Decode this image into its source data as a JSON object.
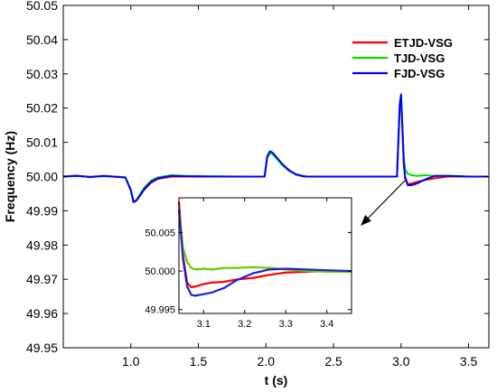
{
  "chart_data": [
    {
      "type": "line",
      "xlabel": "t (s)",
      "ylabel": "Frequency (Hz)",
      "xlim": [
        0.5,
        3.65
      ],
      "ylim": [
        49.95,
        50.05
      ],
      "xticks": [
        1.0,
        1.5,
        2.0,
        2.5,
        3.0,
        3.5
      ],
      "xtick_labels": [
        "1.0",
        "1.5",
        "2.0",
        "2.5",
        "3.0",
        "3.5"
      ],
      "yticks": [
        49.95,
        49.96,
        49.97,
        49.98,
        49.99,
        50.0,
        50.01,
        50.02,
        50.03,
        50.04,
        50.05
      ],
      "ytick_labels": [
        "49.95",
        "49.96",
        "49.97",
        "49.98",
        "49.99",
        "50.00",
        "50.01",
        "50.02",
        "50.03",
        "50.04",
        "50.05"
      ],
      "grid": false,
      "legend_position": "top-right",
      "series": [
        {
          "name": "ETJD-VSG",
          "color": "#ff0000",
          "x": [
            0.5,
            0.6,
            0.7,
            0.8,
            0.9,
            0.96,
            1.0,
            1.02,
            1.04,
            1.07,
            1.1,
            1.15,
            1.2,
            1.3,
            1.4,
            1.6,
            1.8,
            1.99,
            2.01,
            2.03,
            2.05,
            2.08,
            2.12,
            2.17,
            2.22,
            2.27,
            2.3,
            2.4,
            2.6,
            2.8,
            2.97,
            2.99,
            3.0,
            3.01,
            3.02,
            3.03,
            3.05,
            3.08,
            3.12,
            3.18,
            3.25,
            3.35,
            3.5,
            3.65
          ],
          "y": [
            50.0,
            50.0003,
            49.9998,
            50.0002,
            49.9999,
            49.9998,
            49.996,
            49.9925,
            49.9929,
            49.9945,
            49.9962,
            49.9982,
            49.9993,
            50.0,
            50.0,
            50.0,
            50.0,
            50.0,
            50.0058,
            50.0072,
            50.0068,
            50.0055,
            50.0036,
            50.0018,
            50.0006,
            50.0001,
            50.0,
            50.0,
            50.0,
            50.0,
            50.0,
            50.02,
            50.0235,
            50.014,
            50.004,
            50.0,
            49.9978,
            49.998,
            49.9985,
            49.999,
            49.9995,
            50.0,
            50.0,
            50.0
          ]
        },
        {
          "name": "TJD-VSG",
          "color": "#00e000",
          "x": [
            0.5,
            0.6,
            0.7,
            0.8,
            0.9,
            0.96,
            1.0,
            1.02,
            1.04,
            1.07,
            1.1,
            1.15,
            1.2,
            1.3,
            1.4,
            1.6,
            1.8,
            1.99,
            2.01,
            2.03,
            2.05,
            2.08,
            2.12,
            2.17,
            2.22,
            2.27,
            2.3,
            2.4,
            2.6,
            2.8,
            2.97,
            2.99,
            3.0,
            3.01,
            3.02,
            3.03,
            3.05,
            3.08,
            3.12,
            3.18,
            3.25,
            3.35,
            3.5,
            3.65
          ],
          "y": [
            50.0,
            50.0002,
            49.9999,
            50.0001,
            50.0,
            49.9998,
            49.9962,
            49.9928,
            49.993,
            49.995,
            49.9968,
            49.9988,
            49.9998,
            50.0004,
            50.0002,
            50.0001,
            50.0,
            50.0,
            50.0055,
            50.0068,
            50.0065,
            50.0052,
            50.0034,
            50.0017,
            50.0006,
            50.0001,
            50.0,
            50.0,
            50.0,
            50.0,
            50.0,
            50.0195,
            50.0235,
            50.015,
            50.006,
            50.0022,
            50.0008,
            50.0004,
            50.0002,
            50.0004,
            50.0002,
            50.0002,
            50.0,
            50.0
          ]
        },
        {
          "name": "FJD-VSG",
          "color": "#0000ff",
          "x": [
            0.5,
            0.6,
            0.7,
            0.8,
            0.9,
            0.96,
            1.0,
            1.02,
            1.04,
            1.07,
            1.1,
            1.15,
            1.2,
            1.3,
            1.4,
            1.6,
            1.8,
            1.99,
            2.01,
            2.03,
            2.05,
            2.08,
            2.12,
            2.17,
            2.22,
            2.27,
            2.3,
            2.4,
            2.6,
            2.8,
            2.97,
            2.99,
            3.0,
            3.01,
            3.02,
            3.03,
            3.05,
            3.08,
            3.12,
            3.18,
            3.25,
            3.35,
            3.5,
            3.65
          ],
          "y": [
            50.0,
            50.0002,
            49.9999,
            50.0002,
            49.9999,
            49.9997,
            49.996,
            49.9926,
            49.993,
            49.9946,
            49.9964,
            49.9985,
            49.9995,
            50.0002,
            50.0001,
            50.0,
            50.0,
            50.0,
            50.006,
            50.0074,
            50.007,
            50.0056,
            50.0037,
            50.0019,
            50.0007,
            50.0002,
            50.0,
            50.0,
            50.0,
            50.0,
            50.0,
            50.021,
            50.024,
            50.0145,
            50.004,
            49.9995,
            49.9975,
            49.9975,
            49.998,
            49.9992,
            50.0002,
            50.0002,
            50.0,
            50.0
          ]
        }
      ]
    },
    {
      "type": "line",
      "xlim": [
        3.04,
        3.46
      ],
      "ylim": [
        49.9945,
        50.0095
      ],
      "xticks": [
        3.1,
        3.2,
        3.3,
        3.4
      ],
      "xtick_labels": [
        "3.1",
        "3.2",
        "3.3",
        "3.4"
      ],
      "yticks": [
        49.995,
        50.0,
        50.005
      ],
      "ytick_labels": [
        "49.995",
        "50.000",
        "50.005"
      ],
      "grid": false,
      "series": [
        {
          "name": "ETJD-VSG",
          "color": "#ff0000",
          "x": [
            3.04,
            3.05,
            3.06,
            3.07,
            3.08,
            3.1,
            3.12,
            3.15,
            3.18,
            3.22,
            3.26,
            3.3,
            3.35,
            3.4,
            3.46
          ],
          "y": [
            50.009,
            50.002,
            49.9985,
            49.9979,
            49.998,
            49.9983,
            49.9985,
            49.9986,
            49.9989,
            49.9991,
            49.9995,
            49.9998,
            49.9999,
            50.0,
            50.0
          ]
        },
        {
          "name": "TJD-VSG",
          "color": "#66cc00",
          "x": [
            3.04,
            3.05,
            3.06,
            3.07,
            3.08,
            3.1,
            3.12,
            3.15,
            3.18,
            3.22,
            3.26,
            3.3,
            3.35,
            3.4,
            3.46
          ],
          "y": [
            50.008,
            50.003,
            50.0012,
            50.0004,
            50.0002,
            50.0003,
            50.0002,
            50.0004,
            50.0004,
            50.0005,
            50.0004,
            50.0002,
            50.0,
            49.9999,
            49.9999
          ]
        },
        {
          "name": "FJD-VSG",
          "color": "#2222cc",
          "x": [
            3.04,
            3.05,
            3.06,
            3.07,
            3.08,
            3.1,
            3.12,
            3.15,
            3.18,
            3.22,
            3.26,
            3.3,
            3.35,
            3.4,
            3.46
          ],
          "y": [
            50.008,
            50.0015,
            49.998,
            49.9969,
            49.9968,
            49.997,
            49.9972,
            49.9978,
            49.9988,
            49.9997,
            50.0002,
            50.0003,
            50.0002,
            50.0001,
            50.0
          ]
        }
      ]
    }
  ]
}
